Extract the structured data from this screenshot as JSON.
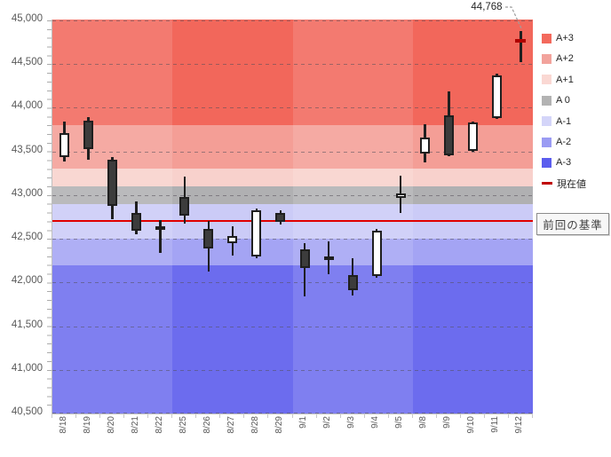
{
  "annotation": {
    "text": "44,768",
    "points_to": "9/12"
  },
  "baseline_box": {
    "label": "前回の基準"
  },
  "legend": {
    "items": [
      {
        "label": "A+3",
        "color": "#f3695c",
        "type": "square"
      },
      {
        "label": "A+2",
        "color": "#f2a39c",
        "type": "square"
      },
      {
        "label": "A+1",
        "color": "#fad8d3",
        "type": "square"
      },
      {
        "label": "A 0",
        "color": "#b3b3b3",
        "type": "square"
      },
      {
        "label": "A-1",
        "color": "#d4d5f9",
        "type": "square"
      },
      {
        "label": "A-2",
        "color": "#9a9bf3",
        "type": "square"
      },
      {
        "label": "A-3",
        "color": "#5b5dee",
        "type": "square"
      },
      {
        "label": "現在値",
        "color": "#c00000",
        "type": "dash"
      }
    ]
  },
  "chart_data": {
    "type": "candlestick",
    "title": "",
    "y_axis": {
      "min": 40500,
      "max": 45000,
      "step": 500,
      "tick_labels": [
        "45,000",
        "44,500",
        "44,000",
        "43,500",
        "43,000",
        "42,500",
        "42,000",
        "41,500",
        "41,000",
        "40,500"
      ],
      "minor_tick_step": 100
    },
    "x_axis": {
      "labels": [
        "8/18",
        "8/19",
        "8/20",
        "8/21",
        "8/22",
        "8/25",
        "8/26",
        "8/27",
        "8/28",
        "8/29",
        "9/1",
        "9/2",
        "9/3",
        "9/4",
        "9/5",
        "9/8",
        "9/9",
        "9/10",
        "9/11",
        "9/12"
      ]
    },
    "bands": [
      {
        "label": "A+3",
        "from": 43800,
        "to": 45100,
        "color": "#f2675b"
      },
      {
        "label": "A+2",
        "from": 43300,
        "to": 43800,
        "color": "#f49e96"
      },
      {
        "label": "A+1",
        "from": 43100,
        "to": 43300,
        "color": "#f8d1cc"
      },
      {
        "label": "A 0",
        "from": 42900,
        "to": 43100,
        "color": "#b0b0b2"
      },
      {
        "label": "A-1",
        "from": 42500,
        "to": 42900,
        "color": "#cbcbf7"
      },
      {
        "label": "A-2",
        "from": 42200,
        "to": 42500,
        "color": "#a4a4f4"
      },
      {
        "label": "A-3",
        "from": 40400,
        "to": 42200,
        "color": "#6c6cee"
      }
    ],
    "week_shading": {
      "light_overlay": "rgba(255,255,255,0.13)",
      "groups": [
        {
          "from": 0,
          "to": 4,
          "lighter": true
        },
        {
          "from": 5,
          "to": 9,
          "lighter": false
        },
        {
          "from": 10,
          "to": 14,
          "lighter": true
        },
        {
          "from": 15,
          "to": 19,
          "lighter": false
        }
      ]
    },
    "baseline": {
      "label": "前回の基準",
      "value": 42700,
      "color": "#e00000"
    },
    "current_value": {
      "label": "現在値",
      "value": 44768,
      "color": "#b00000",
      "date": "9/12"
    },
    "colors": {
      "up_fill": "#ffffff",
      "down_fill": "#3c3c3c",
      "outline": "#1f1f1f"
    },
    "candles": [
      {
        "date": "8/18",
        "open": 43435,
        "high": 43840,
        "low": 43385,
        "close": 43715
      },
      {
        "date": "8/19",
        "open": 43855,
        "high": 43895,
        "low": 43410,
        "close": 43525
      },
      {
        "date": "8/20",
        "open": 43410,
        "high": 43440,
        "low": 42720,
        "close": 42880
      },
      {
        "date": "8/21",
        "open": 42800,
        "high": 42925,
        "low": 42550,
        "close": 42595
      },
      {
        "date": "8/22",
        "open": 42645,
        "high": 42715,
        "low": 42340,
        "close": 42615
      },
      {
        "date": "8/25",
        "open": 42980,
        "high": 43210,
        "low": 42670,
        "close": 42770
      },
      {
        "date": "8/26",
        "open": 42615,
        "high": 42705,
        "low": 42125,
        "close": 42390
      },
      {
        "date": "8/27",
        "open": 42450,
        "high": 42645,
        "low": 42305,
        "close": 42530
      },
      {
        "date": "8/28",
        "open": 42295,
        "high": 42845,
        "low": 42280,
        "close": 42830
      },
      {
        "date": "8/29",
        "open": 42795,
        "high": 42830,
        "low": 42660,
        "close": 42695
      },
      {
        "date": "9/1",
        "open": 42375,
        "high": 42450,
        "low": 41845,
        "close": 42170
      },
      {
        "date": "9/2",
        "open": 42300,
        "high": 42470,
        "low": 42090,
        "close": 42280
      },
      {
        "date": "9/3",
        "open": 42085,
        "high": 42280,
        "low": 41855,
        "close": 41910
      },
      {
        "date": "9/4",
        "open": 42070,
        "high": 42610,
        "low": 42050,
        "close": 42595
      },
      {
        "date": "9/5",
        "open": 42965,
        "high": 43225,
        "low": 42795,
        "close": 43020
      },
      {
        "date": "9/8",
        "open": 43475,
        "high": 43810,
        "low": 43370,
        "close": 43660
      },
      {
        "date": "9/9",
        "open": 43915,
        "high": 44185,
        "low": 43450,
        "close": 43455
      },
      {
        "date": "9/10",
        "open": 43505,
        "high": 43845,
        "low": 43495,
        "close": 43830
      },
      {
        "date": "9/11",
        "open": 43880,
        "high": 44395,
        "low": 43870,
        "close": 44375
      },
      {
        "date": "9/12",
        "open": 44790,
        "high": 44875,
        "low": 44520,
        "close": 44745
      }
    ]
  }
}
